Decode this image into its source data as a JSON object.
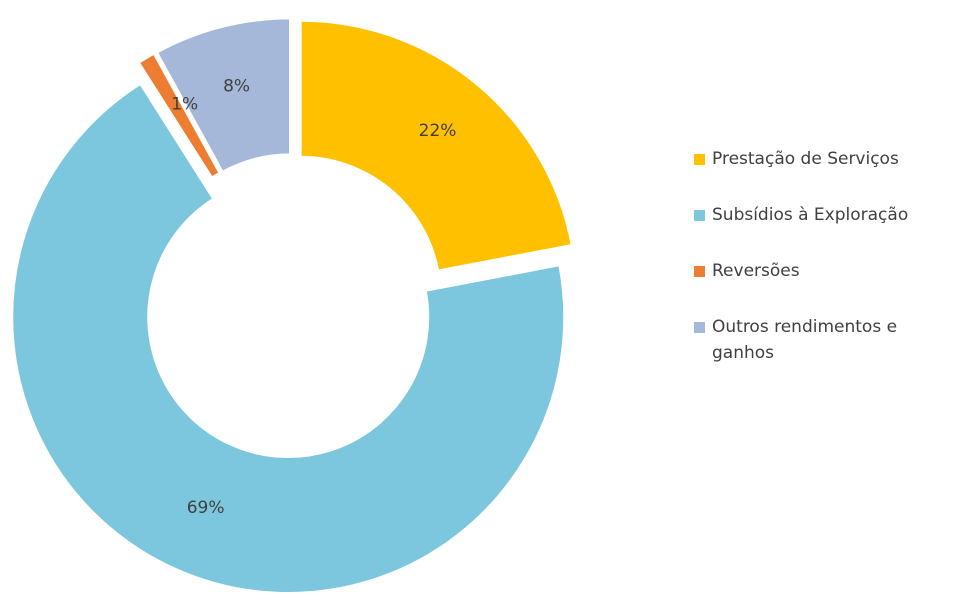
{
  "chart_data": {
    "type": "pie",
    "variant": "donut",
    "exploded": true,
    "slices": [
      {
        "label": "Prestação de Serviços",
        "value": 22,
        "display": "22%",
        "color": "#FFC000"
      },
      {
        "label": "Subsídios à Exploração",
        "value": 69,
        "display": "69%",
        "color": "#7CC7DD"
      },
      {
        "label": "Reversões",
        "value": 1,
        "display": "1%",
        "color": "#ED7D31"
      },
      {
        "label": "Outros rendimentos e ganhos",
        "value": 8,
        "display": "8%",
        "color": "#A6B8DA"
      }
    ],
    "legend_position": "right"
  }
}
